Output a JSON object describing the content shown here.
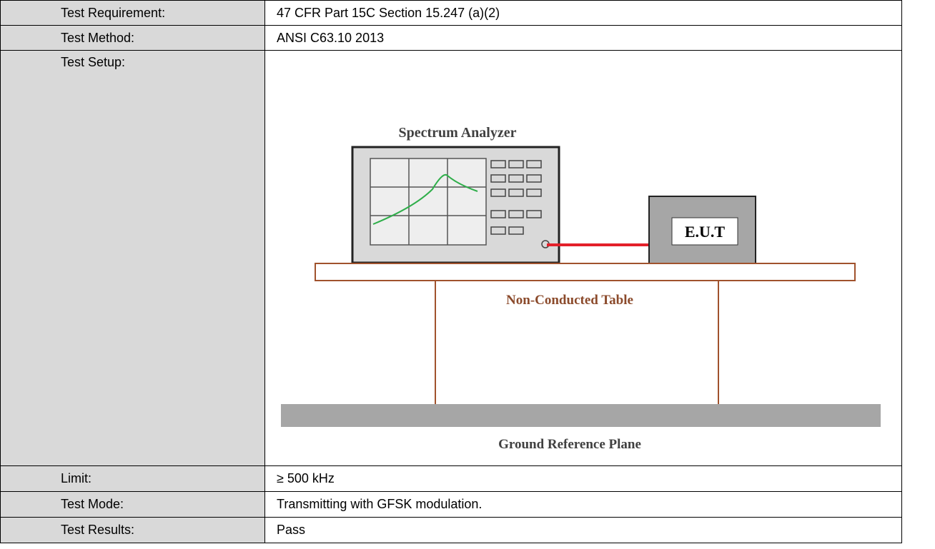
{
  "table": {
    "rows": [
      {
        "label": "Test Requirement:",
        "value": "47 CFR Part 15C Section 15.247 (a)(2)"
      },
      {
        "label": "Test Method:",
        "value": "ANSI C63.10 2013"
      },
      {
        "label": "Test Setup:"
      },
      {
        "label": "Limit:",
        "value": "≥ 500 kHz"
      },
      {
        "label": "Test Mode:",
        "value": "Transmitting with GFSK modulation."
      },
      {
        "label": "Test Results:",
        "value": "Pass"
      }
    ]
  },
  "diagram": {
    "analyzer": "Spectrum Analyzer",
    "eut": "E.U.T",
    "table": "Non-Conducted Table",
    "ground": "Ground Reference Plane"
  }
}
